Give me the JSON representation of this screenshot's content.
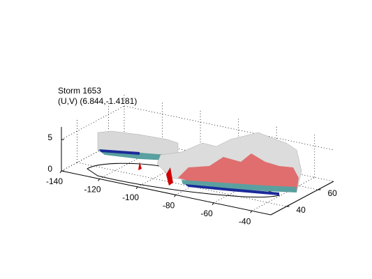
{
  "chart_data": {
    "type": "surface3d",
    "title": "Storm 1653",
    "subtitle": "(U,V) (6.844,-1.4181)",
    "xlim": [
      -140,
      -30
    ],
    "xticks": [
      -140,
      -120,
      -100,
      -80,
      -60,
      -40
    ],
    "ylim": [
      30,
      70
    ],
    "yticks": [
      40,
      60
    ],
    "zlim": [
      0,
      7
    ],
    "zticks": [
      0,
      5
    ],
    "grid": true
  }
}
